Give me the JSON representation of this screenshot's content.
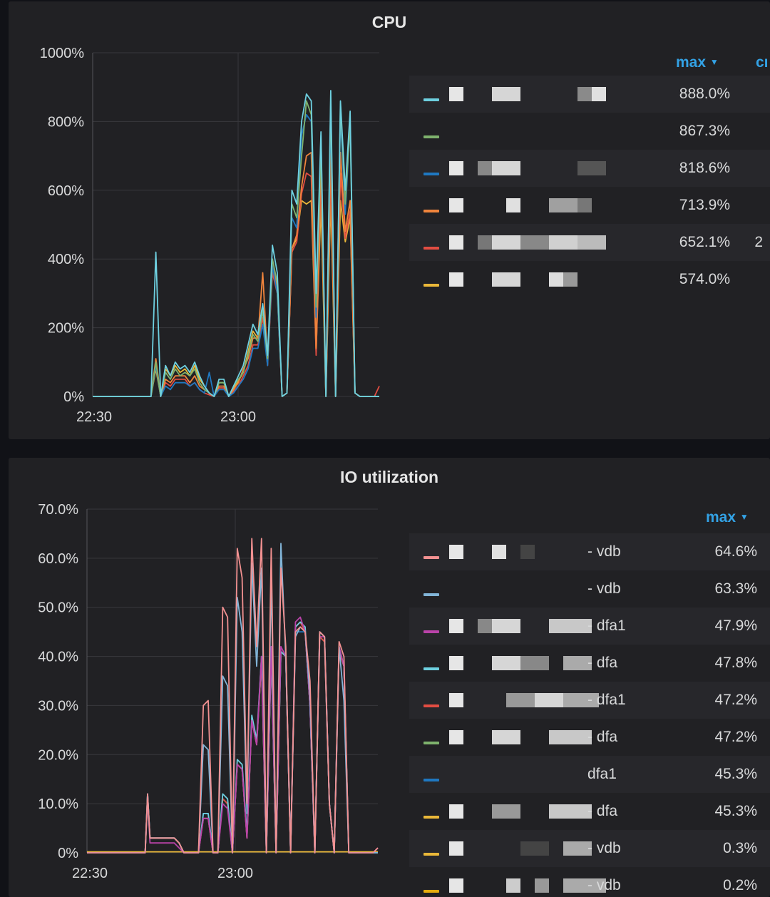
{
  "colors": {
    "background": "#111217",
    "panel": "#212124",
    "legend_header": "#33a2e5",
    "grid": "#3a3a3e"
  },
  "cpu_panel": {
    "title": "CPU",
    "legend_header_max": "max",
    "legend_header_cut": "cı",
    "rows": [
      {
        "color": "#6ed0e0",
        "suffix": "",
        "value": "888.0%"
      },
      {
        "color": "#7eb26d",
        "suffix": "",
        "value": "867.3%"
      },
      {
        "color": "#1f78c1",
        "suffix": "",
        "value": "818.6%"
      },
      {
        "color": "#ef843c",
        "suffix": "",
        "value": "713.9%"
      },
      {
        "color": "#e24d42",
        "suffix": "",
        "value": "652.1%",
        "extra": "2"
      },
      {
        "color": "#eab839",
        "suffix": "",
        "value": "574.0%"
      }
    ]
  },
  "io_panel": {
    "title": "IO utilization",
    "legend_header_max": "max",
    "rows": [
      {
        "color": "#f29191",
        "suffix": "- vdb",
        "value": "64.6%"
      },
      {
        "color": "#82b5d8",
        "suffix": "- vdb",
        "value": "63.3%"
      },
      {
        "color": "#ba43a9",
        "suffix": "- dfa1",
        "value": "47.9%"
      },
      {
        "color": "#6ed0e0",
        "suffix": "- dfa",
        "value": "47.8%"
      },
      {
        "color": "#e24d42",
        "suffix": "- dfa1",
        "value": "47.2%"
      },
      {
        "color": "#7eb26d",
        "suffix": "- dfa",
        "value": "47.2%"
      },
      {
        "color": "#1f78c1",
        "suffix": "dfa1",
        "value": "45.3%"
      },
      {
        "color": "#eab839",
        "suffix": "- dfa",
        "value": "45.3%"
      },
      {
        "color": "#eab839",
        "suffix": "- vdb",
        "value": "0.3%"
      },
      {
        "color": "#e5ac0e",
        "suffix": "- vdb",
        "value": "0.2%"
      }
    ]
  },
  "chart_data": [
    {
      "type": "line",
      "title": "CPU",
      "y_ticks": [
        "0%",
        "200%",
        "400%",
        "600%",
        "800%",
        "1000%"
      ],
      "x_ticks": [
        "22:30",
        "23:00"
      ],
      "ylim": [
        0,
        1000
      ],
      "x_range_minutes": [
        0,
        59
      ],
      "x": [
        0,
        4,
        8,
        12,
        13,
        14,
        15,
        16,
        17,
        18,
        19,
        20,
        21,
        22,
        23,
        24,
        25,
        26,
        27,
        28,
        29,
        30,
        31,
        32,
        33,
        34,
        35,
        36,
        37,
        38,
        39,
        40,
        41,
        42,
        43,
        44,
        45,
        46,
        47,
        48,
        49,
        50,
        51,
        52,
        53,
        54,
        55,
        56,
        57,
        58,
        59
      ],
      "series": [
        {
          "color": "#6ed0e0",
          "values": [
            0,
            0,
            0,
            0,
            420,
            0,
            90,
            60,
            100,
            80,
            90,
            70,
            100,
            60,
            30,
            10,
            0,
            50,
            50,
            0,
            30,
            60,
            90,
            150,
            210,
            180,
            270,
            120,
            440,
            360,
            0,
            10,
            600,
            560,
            800,
            880,
            860,
            300,
            770,
            0,
            890,
            0,
            860,
            600,
            830,
            10,
            0,
            0,
            0,
            0,
            0
          ]
        },
        {
          "color": "#7eb26d",
          "values": [
            0,
            0,
            0,
            0,
            100,
            0,
            70,
            50,
            80,
            60,
            70,
            60,
            80,
            40,
            20,
            10,
            0,
            40,
            40,
            0,
            30,
            50,
            70,
            120,
            180,
            160,
            250,
            110,
            400,
            330,
            0,
            10,
            560,
            520,
            700,
            860,
            820,
            260,
            720,
            0,
            860,
            0,
            850,
            560,
            800,
            10,
            0,
            0,
            0,
            0,
            0
          ]
        },
        {
          "color": "#1f78c1",
          "values": [
            0,
            0,
            0,
            0,
            90,
            0,
            30,
            20,
            40,
            40,
            40,
            30,
            40,
            20,
            10,
            70,
            0,
            20,
            20,
            0,
            10,
            30,
            50,
            80,
            140,
            140,
            210,
            90,
            380,
            300,
            0,
            10,
            520,
            490,
            760,
            820,
            800,
            230,
            760,
            0,
            820,
            0,
            820,
            530,
            800,
            10,
            0,
            0,
            0,
            0,
            0
          ]
        },
        {
          "color": "#ef843c",
          "values": [
            0,
            0,
            0,
            0,
            110,
            0,
            50,
            40,
            60,
            60,
            60,
            40,
            60,
            30,
            20,
            10,
            0,
            30,
            30,
            0,
            20,
            40,
            80,
            110,
            170,
            170,
            360,
            100,
            380,
            320,
            0,
            10,
            430,
            470,
            610,
            700,
            710,
            140,
            690,
            0,
            710,
            0,
            710,
            480,
            570,
            10,
            0,
            0,
            0,
            0,
            0
          ]
        },
        {
          "color": "#e24d42",
          "values": [
            0,
            0,
            0,
            0,
            95,
            0,
            40,
            30,
            50,
            50,
            50,
            30,
            40,
            20,
            10,
            5,
            0,
            25,
            25,
            0,
            15,
            30,
            60,
            90,
            150,
            150,
            230,
            90,
            360,
            300,
            0,
            10,
            420,
            450,
            590,
            650,
            640,
            120,
            640,
            0,
            650,
            0,
            650,
            460,
            540,
            10,
            0,
            0,
            0,
            0,
            30
          ]
        },
        {
          "color": "#eab839",
          "values": [
            0,
            0,
            0,
            0,
            80,
            0,
            80,
            60,
            90,
            70,
            80,
            60,
            90,
            50,
            30,
            10,
            0,
            40,
            40,
            0,
            25,
            45,
            70,
            130,
            190,
            170,
            260,
            100,
            370,
            310,
            0,
            10,
            430,
            460,
            570,
            560,
            570,
            130,
            560,
            0,
            574,
            0,
            570,
            450,
            520,
            10,
            0,
            0,
            0,
            0,
            0
          ]
        }
      ]
    },
    {
      "type": "line",
      "title": "IO utilization",
      "y_ticks": [
        "0%",
        "10.0%",
        "20.0%",
        "30.0%",
        "40.0%",
        "50.0%",
        "60.0%",
        "70.0%"
      ],
      "x_ticks": [
        "22:30",
        "23:00"
      ],
      "ylim": [
        0,
        70
      ],
      "x_range_minutes": [
        0,
        60
      ],
      "x": [
        0,
        12,
        12.5,
        13,
        14,
        15,
        16,
        17,
        18,
        19,
        20,
        21,
        22,
        23,
        24,
        25,
        26,
        27,
        28,
        29,
        30,
        31,
        32,
        33,
        34,
        35,
        36,
        37,
        38,
        39,
        40,
        41,
        42,
        43,
        44,
        45,
        46,
        47,
        48,
        49,
        50,
        51,
        52,
        53,
        54,
        55,
        56,
        57,
        58,
        59,
        60
      ],
      "series": [
        {
          "color": "#f29191",
          "values": [
            0,
            0,
            12,
            3,
            3,
            3,
            3,
            3,
            3,
            2,
            0,
            0,
            0,
            0,
            30,
            31,
            0,
            0,
            50,
            48,
            0,
            62,
            56,
            10,
            64,
            42,
            64,
            0,
            62,
            0,
            58,
            42,
            0,
            45,
            46,
            45,
            35,
            0,
            45,
            44,
            10,
            0,
            43,
            40,
            0,
            0,
            0,
            0,
            0,
            0,
            1
          ]
        },
        {
          "color": "#82b5d8",
          "values": [
            0,
            0,
            12,
            3,
            3,
            3,
            3,
            3,
            3,
            2,
            0,
            0,
            0,
            0,
            22,
            21,
            0,
            0,
            36,
            34,
            0,
            52,
            45,
            8,
            59,
            38,
            58,
            0,
            56,
            0,
            63,
            40,
            0,
            44,
            46,
            45,
            32,
            0,
            45,
            44,
            10,
            0,
            42,
            31,
            0,
            0,
            0,
            0,
            0,
            0,
            0
          ]
        },
        {
          "color": "#ba43a9",
          "values": [
            0,
            0,
            11,
            2,
            2,
            2,
            2,
            2,
            2,
            1,
            0,
            0,
            0,
            0,
            7,
            7,
            0,
            0,
            10,
            9,
            0,
            18,
            17,
            3,
            27,
            22,
            40,
            0,
            42,
            0,
            42,
            40,
            0,
            47,
            48,
            45,
            30,
            0,
            44,
            44,
            10,
            0,
            42,
            38,
            0,
            0,
            0,
            0,
            0,
            0,
            1
          ]
        },
        {
          "color": "#6ed0e0",
          "values": [
            0,
            0,
            12,
            3,
            3,
            3,
            3,
            3,
            3,
            2,
            0,
            0,
            0,
            0,
            8,
            8,
            0,
            0,
            12,
            11,
            0,
            19,
            18,
            4,
            28,
            23,
            40,
            0,
            41,
            0,
            41,
            40,
            0,
            46,
            47,
            46,
            30,
            0,
            45,
            44,
            10,
            0,
            42,
            38,
            0,
            0,
            0,
            0,
            0,
            0,
            0
          ]
        },
        {
          "color": "#e24d42",
          "values": [
            0,
            0,
            11,
            3,
            3,
            3,
            3,
            3,
            3,
            2,
            0,
            0,
            0,
            0,
            7,
            7,
            0,
            0,
            11,
            10,
            0,
            18,
            17,
            3,
            27,
            22,
            39,
            0,
            41,
            0,
            41,
            40,
            0,
            46,
            47,
            45,
            30,
            0,
            44,
            43,
            10,
            0,
            41,
            38,
            0,
            0,
            0,
            0,
            0,
            0,
            1
          ]
        },
        {
          "color": "#7eb26d",
          "values": [
            0,
            0,
            11,
            3,
            3,
            3,
            3,
            3,
            3,
            2,
            0,
            0,
            0,
            0,
            7,
            7,
            0,
            0,
            11,
            10,
            0,
            18,
            17,
            3,
            27,
            22,
            39,
            0,
            41,
            0,
            41,
            40,
            0,
            46,
            47,
            45,
            30,
            0,
            44,
            43,
            10,
            0,
            41,
            38,
            0,
            0,
            0,
            0,
            0,
            0,
            0
          ]
        },
        {
          "color": "#1f78c1",
          "values": [
            0,
            0,
            12,
            3,
            3,
            3,
            3,
            3,
            3,
            2,
            0,
            0,
            0,
            0,
            8,
            8,
            0,
            0,
            11,
            10,
            0,
            18,
            17,
            3,
            27,
            22,
            39,
            0,
            41,
            0,
            41,
            40,
            0,
            45,
            45,
            45,
            30,
            0,
            44,
            43,
            10,
            0,
            41,
            38,
            0,
            0,
            0,
            0,
            0,
            0,
            0
          ]
        },
        {
          "color": "#eab839",
          "values": [
            0.2,
            0.2,
            0.2,
            0.2,
            0.2,
            0.2,
            0.2,
            0.2,
            0.2,
            0.2,
            0.2,
            0.2,
            0.2,
            0.2,
            0.2,
            0.2,
            0.2,
            0.2,
            0.2,
            0.2,
            0.2,
            0.2,
            0.2,
            0.2,
            0.2,
            0.2,
            0.2,
            0.2,
            0.2,
            0.2,
            0.2,
            0.2,
            0.2,
            0.2,
            0.2,
            0.2,
            0.2,
            0.2,
            0.2,
            0.2,
            0.2,
            0.2,
            0.2,
            0.2,
            0.2,
            0.2,
            0.2,
            0.2,
            0.2,
            0.2,
            0.2
          ]
        }
      ]
    }
  ]
}
